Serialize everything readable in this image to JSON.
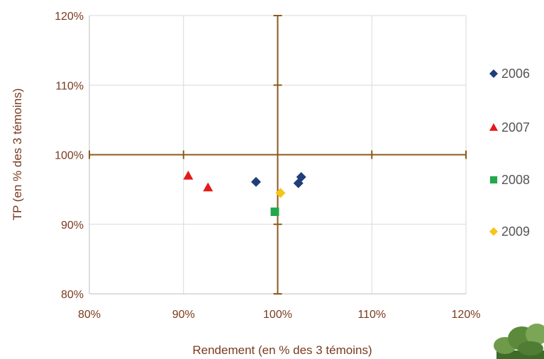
{
  "chart_data": {
    "type": "scatter",
    "title": "",
    "xlabel": "Rendement (en % des 3 témoins)",
    "ylabel": "TP (en % des 3 témoins)",
    "xlim": [
      80,
      120
    ],
    "ylim": [
      80,
      120
    ],
    "x_ticks": [
      "80%",
      "90%",
      "100%",
      "110%",
      "120%"
    ],
    "y_ticks": [
      "80%",
      "90%",
      "100%",
      "110%",
      "120%"
    ],
    "grid": true,
    "legend_position": "right",
    "reference_lines": {
      "x": 100,
      "y": 100,
      "color": "#8b5a1a"
    },
    "series": [
      {
        "name": "2006",
        "marker": "diamond",
        "color": "#1f3f7a",
        "points": [
          {
            "x": 97.7,
            "y": 96.1
          },
          {
            "x": 102.2,
            "y": 95.9
          },
          {
            "x": 102.5,
            "y": 96.8
          }
        ]
      },
      {
        "name": "2007",
        "marker": "triangle",
        "color": "#e31a1c",
        "points": [
          {
            "x": 90.5,
            "y": 97.0
          },
          {
            "x": 92.6,
            "y": 95.3
          }
        ]
      },
      {
        "name": "2008",
        "marker": "square",
        "color": "#22a84a",
        "points": [
          {
            "x": 99.7,
            "y": 91.8
          }
        ]
      },
      {
        "name": "2009",
        "marker": "diamond",
        "color": "#f5c518",
        "points": [
          {
            "x": 100.3,
            "y": 94.5
          }
        ]
      }
    ]
  }
}
